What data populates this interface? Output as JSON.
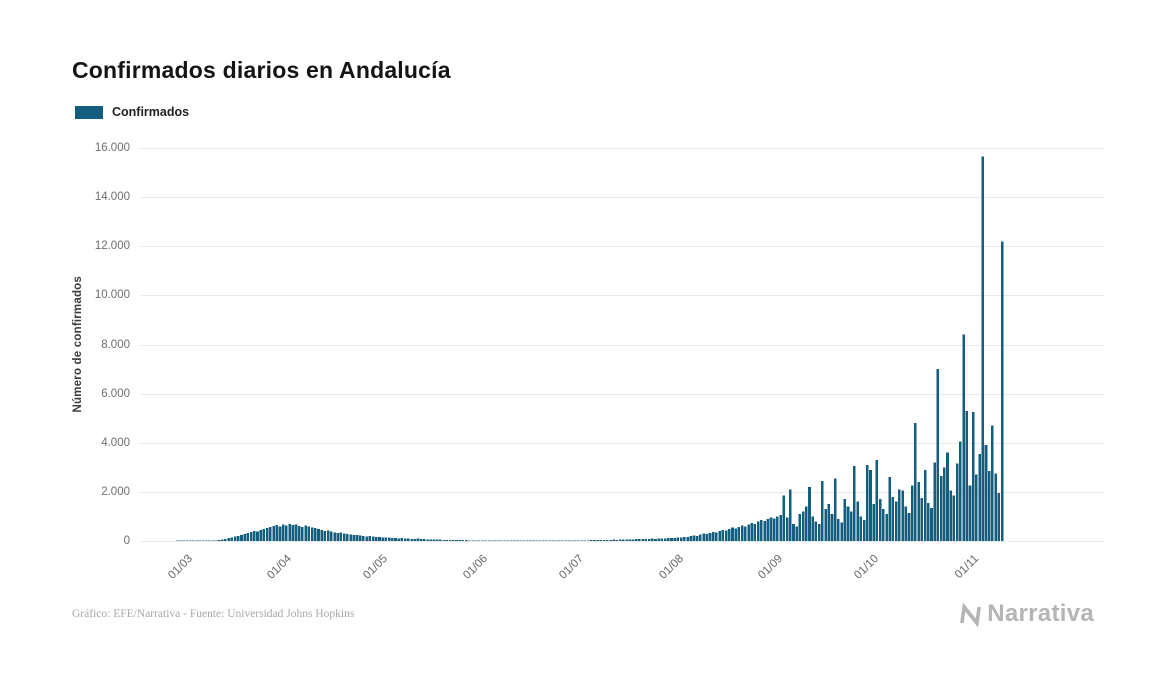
{
  "page": {
    "background": "#ffffff"
  },
  "title": "Confirmados diarios en Andalucía",
  "legend": {
    "label": "Confirmados",
    "swatch_color": "#135e7e"
  },
  "footer": {
    "credit": "Gráfico: EFE/Narrativa - Fuente: Universidad Johns Hopkins",
    "brand": "Narrativa"
  },
  "chart_data": {
    "type": "bar",
    "title": "Confirmados diarios en Andalucía",
    "xlabel": "",
    "ylabel": "Número de confirmados",
    "ylim": [
      0,
      16000
    ],
    "grid": true,
    "legend_position": "top-left",
    "bar_color": "#135e7e",
    "y_ticks": [
      0,
      2000,
      4000,
      6000,
      8000,
      10000,
      12000,
      14000,
      16000
    ],
    "y_tick_labels": [
      "0",
      "2.000",
      "4.000",
      "6.000",
      "8.000",
      "10.000",
      "12.000",
      "14.000",
      "16.000"
    ],
    "x_tick_labels": [
      "01/03",
      "01/04",
      "01/05",
      "01/06",
      "01/07",
      "01/08",
      "01/09",
      "01/10",
      "01/11"
    ],
    "x_tick_indices": [
      4,
      35,
      65,
      96,
      126,
      157,
      188,
      218,
      249
    ],
    "start_date": "2020-02-26",
    "series": [
      {
        "name": "Confirmados",
        "values": [
          1,
          2,
          3,
          5,
          2,
          3,
          4,
          6,
          8,
          10,
          14,
          20,
          30,
          45,
          60,
          90,
          120,
          150,
          180,
          210,
          250,
          290,
          330,
          370,
          410,
          380,
          450,
          490,
          530,
          570,
          610,
          650,
          600,
          680,
          640,
          700,
          660,
          680,
          620,
          580,
          640,
          600,
          560,
          520,
          480,
          440,
          400,
          430,
          380,
          350,
          320,
          340,
          300,
          280,
          260,
          240,
          250,
          220,
          200,
          190,
          210,
          180,
          170,
          160,
          150,
          140,
          150,
          130,
          120,
          110,
          115,
          100,
          95,
          90,
          85,
          95,
          80,
          75,
          70,
          65,
          60,
          70,
          55,
          50,
          45,
          48,
          40,
          38,
          35,
          32,
          36,
          30,
          28,
          25,
          22,
          20,
          18,
          16,
          20,
          15,
          12,
          14,
          10,
          12,
          15,
          11,
          9,
          13,
          10,
          8,
          12,
          14,
          10,
          9,
          11,
          13,
          15,
          12,
          10,
          14,
          16,
          12,
          18,
          15,
          20,
          22,
          25,
          30,
          28,
          35,
          32,
          40,
          38,
          45,
          42,
          50,
          55,
          48,
          60,
          52,
          65,
          70,
          62,
          75,
          80,
          72,
          85,
          90,
          95,
          88,
          100,
          110,
          105,
          120,
          115,
          130,
          140,
          150,
          170,
          160,
          200,
          230,
          210,
          260,
          300,
          280,
          330,
          370,
          350,
          400,
          450,
          420,
          490,
          540,
          510,
          580,
          630,
          600,
          680,
          740,
          700,
          790,
          850,
          810,
          900,
          960,
          920,
          1000,
          1050,
          1850,
          950,
          2100,
          700,
          600,
          1100,
          1200,
          1400,
          2200,
          1000,
          800,
          700,
          2450,
          1300,
          1500,
          1100,
          2550,
          900,
          750,
          1700,
          1400,
          1200,
          3050,
          1600,
          1000,
          850,
          3100,
          2900,
          1500,
          3300,
          1700,
          1300,
          1100,
          2600,
          1800,
          1600,
          2100,
          2050,
          1400,
          1150,
          2250,
          4800,
          2400,
          1750,
          2900,
          1550,
          1350,
          3200,
          7000,
          2650,
          3000,
          3600,
          2050,
          1850,
          3150,
          4050,
          8400,
          5300,
          2250,
          5250,
          2700,
          3550,
          15650,
          3900,
          2850,
          4700,
          2750,
          1950,
          12200
        ]
      }
    ]
  }
}
